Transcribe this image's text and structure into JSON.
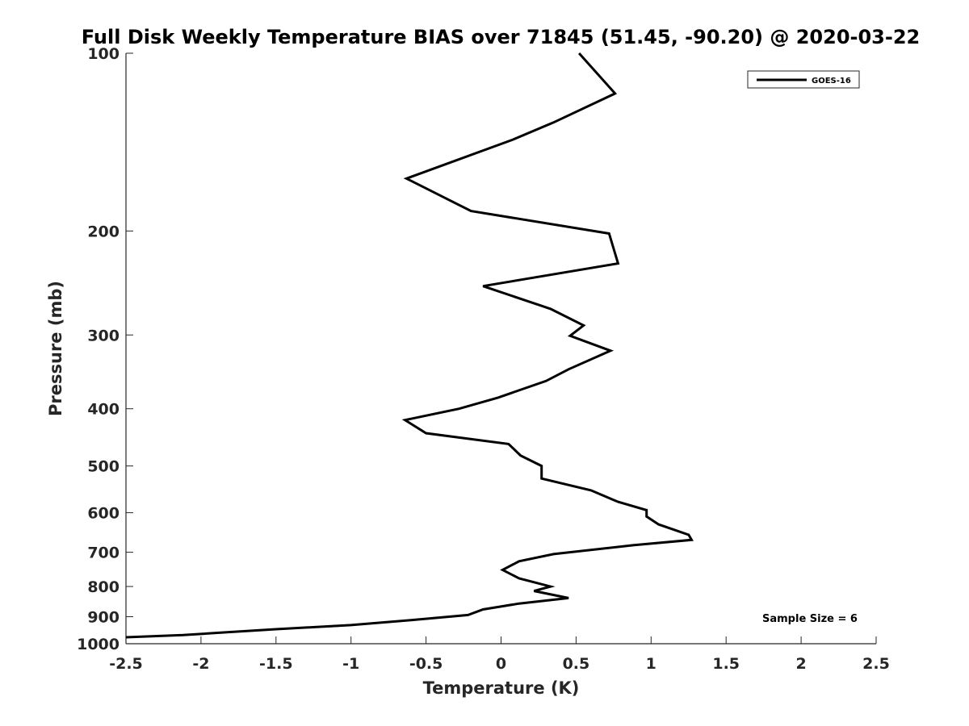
{
  "chart_data": {
    "type": "line",
    "title": "Full Disk Weekly Temperature BIAS over 71845 (51.45, -90.20) @ 2020-03-22",
    "xlabel": "Temperature (K)",
    "ylabel": "Pressure (mb)",
    "xlim": [
      -2.5,
      2.5
    ],
    "ylim": [
      100,
      1000
    ],
    "y_scale": "log",
    "y_reversed": true,
    "x_ticks": [
      -2.5,
      -2,
      -1.5,
      -1,
      -0.5,
      0,
      0.5,
      1,
      1.5,
      2,
      2.5
    ],
    "x_tick_labels": [
      "-2.5",
      "-2",
      "-1.5",
      "-1",
      "-0.5",
      "0",
      "0.5",
      "1",
      "1.5",
      "2",
      "2.5"
    ],
    "y_ticks": [
      100,
      200,
      300,
      400,
      500,
      600,
      700,
      800,
      900,
      1000
    ],
    "y_tick_labels": [
      "100",
      "200",
      "300",
      "400",
      "500",
      "600",
      "700",
      "800",
      "900",
      "1000"
    ],
    "grid": false,
    "legend_position": "top-right",
    "series": [
      {
        "name": "GOES-16",
        "color": "#000000",
        "points": [
          {
            "x": 0.52,
            "p": 100
          },
          {
            "x": 0.76,
            "p": 117
          },
          {
            "x": 0.35,
            "p": 131
          },
          {
            "x": 0.08,
            "p": 140
          },
          {
            "x": -0.63,
            "p": 163
          },
          {
            "x": -0.2,
            "p": 185
          },
          {
            "x": 0.72,
            "p": 202
          },
          {
            "x": 0.78,
            "p": 227
          },
          {
            "x": -0.12,
            "p": 248
          },
          {
            "x": 0.33,
            "p": 271
          },
          {
            "x": 0.55,
            "p": 289
          },
          {
            "x": 0.46,
            "p": 301
          },
          {
            "x": 0.73,
            "p": 319
          },
          {
            "x": 0.45,
            "p": 343
          },
          {
            "x": 0.3,
            "p": 359
          },
          {
            "x": -0.02,
            "p": 383
          },
          {
            "x": -0.28,
            "p": 400
          },
          {
            "x": -0.64,
            "p": 418
          },
          {
            "x": -0.5,
            "p": 440
          },
          {
            "x": 0.05,
            "p": 459
          },
          {
            "x": 0.13,
            "p": 480
          },
          {
            "x": 0.27,
            "p": 500
          },
          {
            "x": 0.27,
            "p": 525
          },
          {
            "x": 0.6,
            "p": 550
          },
          {
            "x": 0.78,
            "p": 575
          },
          {
            "x": 0.97,
            "p": 594
          },
          {
            "x": 0.97,
            "p": 609
          },
          {
            "x": 1.05,
            "p": 628
          },
          {
            "x": 1.25,
            "p": 654
          },
          {
            "x": 1.27,
            "p": 667
          },
          {
            "x": 0.88,
            "p": 681
          },
          {
            "x": 0.35,
            "p": 705
          },
          {
            "x": 0.12,
            "p": 725
          },
          {
            "x": 0.01,
            "p": 750
          },
          {
            "x": 0.12,
            "p": 775
          },
          {
            "x": 0.33,
            "p": 800
          },
          {
            "x": 0.22,
            "p": 814
          },
          {
            "x": 0.45,
            "p": 837
          },
          {
            "x": 0.12,
            "p": 855
          },
          {
            "x": -0.12,
            "p": 875
          },
          {
            "x": -0.22,
            "p": 894
          },
          {
            "x": -0.6,
            "p": 912
          },
          {
            "x": -1.0,
            "p": 930
          },
          {
            "x": -1.5,
            "p": 945
          },
          {
            "x": -1.88,
            "p": 958
          },
          {
            "x": -2.12,
            "p": 967
          },
          {
            "x": -2.5,
            "p": 975
          }
        ]
      }
    ],
    "annotations": [
      {
        "text": "Sample Size = 6",
        "position": "bottom-right"
      }
    ]
  }
}
